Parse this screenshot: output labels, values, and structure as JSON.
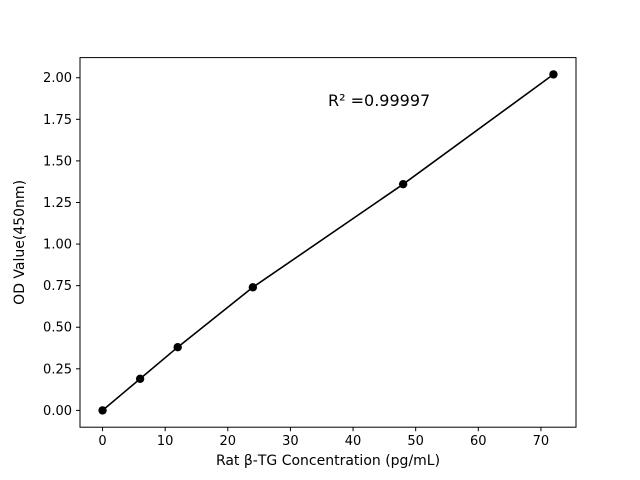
{
  "chart_data": {
    "type": "scatter",
    "title": "",
    "x": [
      0,
      6,
      12,
      24,
      48,
      72
    ],
    "y": [
      0.0,
      0.19,
      0.38,
      0.74,
      1.36,
      2.02
    ],
    "xlabel": "Rat β-TG Concentration (pg/mL)",
    "ylabel": "OD Value(450nm)",
    "xticks": [
      0,
      10,
      20,
      30,
      40,
      50,
      60,
      70
    ],
    "yticks": [
      0.0,
      0.25,
      0.5,
      0.75,
      1.0,
      1.25,
      1.5,
      1.75,
      2.0
    ],
    "xlim": [
      -3.6,
      75.6
    ],
    "ylim": [
      -0.101,
      2.121
    ],
    "annotation": {
      "text": "R² =0.99997",
      "x": 36,
      "y": 1.83
    },
    "line_color": "#000000",
    "marker_color": "#000000",
    "background": "#ffffff",
    "grid": false,
    "legend": "none"
  }
}
